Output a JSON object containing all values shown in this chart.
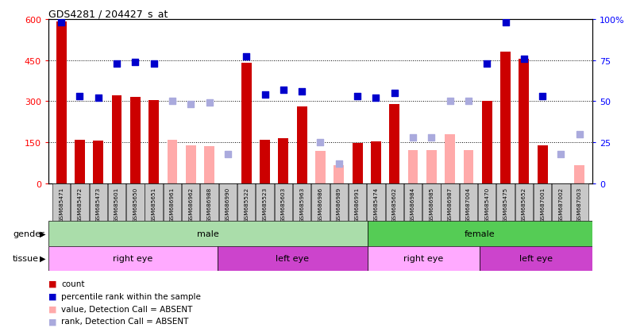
{
  "title": "GDS4281 / 204427_s_at",
  "samples": [
    "GSM685471",
    "GSM685472",
    "GSM685473",
    "GSM685601",
    "GSM685650",
    "GSM685651",
    "GSM686961",
    "GSM686962",
    "GSM686988",
    "GSM686990",
    "GSM685522",
    "GSM685523",
    "GSM685603",
    "GSM685963",
    "GSM686986",
    "GSM686989",
    "GSM686991",
    "GSM685474",
    "GSM685602",
    "GSM686984",
    "GSM686985",
    "GSM686987",
    "GSM687004",
    "GSM685470",
    "GSM685475",
    "GSM685652",
    "GSM687001",
    "GSM687002",
    "GSM687003"
  ],
  "count_values": [
    590,
    160,
    155,
    320,
    315,
    305,
    null,
    null,
    null,
    null,
    440,
    160,
    165,
    280,
    null,
    null,
    148,
    152,
    290,
    null,
    null,
    null,
    null,
    300,
    480,
    455,
    138,
    null,
    null
  ],
  "absent_values": [
    null,
    null,
    null,
    null,
    null,
    null,
    158,
    140,
    135,
    null,
    null,
    null,
    null,
    null,
    118,
    65,
    null,
    null,
    null,
    122,
    120,
    180,
    120,
    null,
    null,
    null,
    null,
    null,
    65
  ],
  "rank_values": [
    98,
    53,
    52,
    73,
    74,
    73,
    null,
    null,
    null,
    null,
    77,
    54,
    57,
    56,
    null,
    null,
    53,
    52,
    55,
    null,
    null,
    null,
    null,
    73,
    98,
    76,
    53,
    null,
    null
  ],
  "absent_rank_values": [
    null,
    null,
    null,
    null,
    null,
    null,
    50,
    48,
    49,
    18,
    null,
    null,
    null,
    null,
    25,
    12,
    null,
    null,
    null,
    28,
    28,
    50,
    50,
    null,
    null,
    null,
    null,
    18,
    30
  ],
  "gender_groups": [
    {
      "label": "male",
      "start": 0,
      "end": 17,
      "color": "#aaddaa"
    },
    {
      "label": "female",
      "start": 17,
      "end": 29,
      "color": "#55cc55"
    }
  ],
  "tissue_groups": [
    {
      "label": "right eye",
      "start": 0,
      "end": 9,
      "color": "#ffaaff"
    },
    {
      "label": "left eye",
      "start": 9,
      "end": 17,
      "color": "#cc44cc"
    },
    {
      "label": "right eye",
      "start": 17,
      "end": 23,
      "color": "#ffaaff"
    },
    {
      "label": "left eye",
      "start": 23,
      "end": 29,
      "color": "#cc44cc"
    }
  ],
  "bar_color": "#cc0000",
  "absent_bar_color": "#ffaaaa",
  "rank_color": "#0000cc",
  "absent_rank_color": "#aaaadd",
  "ylim_left": [
    0,
    600
  ],
  "ylim_right": [
    0,
    100
  ],
  "yticks_left": [
    0,
    150,
    300,
    450,
    600
  ],
  "yticks_right": [
    0,
    25,
    50,
    75,
    100
  ],
  "ytick_labels_right": [
    "0",
    "25",
    "50",
    "75",
    "100%"
  ],
  "grid_lines": [
    150,
    300,
    450
  ],
  "bar_width": 0.55,
  "rank_marker_size": 30
}
